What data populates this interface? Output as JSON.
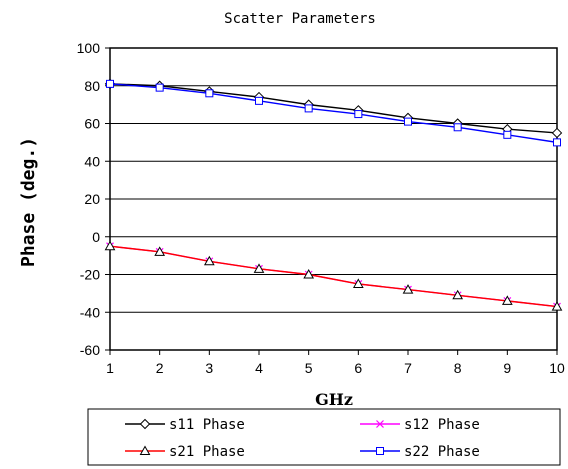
{
  "chart_data": {
    "type": "line",
    "title": "Scatter Parameters",
    "xlabel": "GHz",
    "ylabel": "Phase (deg.)",
    "x": [
      1,
      2,
      3,
      4,
      5,
      6,
      7,
      8,
      9,
      10
    ],
    "xlim": [
      1,
      10
    ],
    "ylim": [
      -60,
      100
    ],
    "yticks": [
      100,
      80,
      60,
      40,
      20,
      0,
      -20,
      -40,
      -60
    ],
    "grid": true,
    "legend_position": "bottom",
    "series": [
      {
        "name": "s11 Phase",
        "color": "#000000",
        "marker": "diamond",
        "values": [
          81,
          80,
          77,
          74,
          70,
          67,
          63,
          60,
          57,
          55
        ]
      },
      {
        "name": "s12 Phase",
        "color": "#ff00ff",
        "marker": "x",
        "values": [
          -5,
          -8,
          -13,
          -17,
          -20,
          -25,
          -28,
          -31,
          -34,
          -37
        ]
      },
      {
        "name": "s21 Phase",
        "color": "#ff0000",
        "marker": "triangle",
        "values": [
          -5,
          -8,
          -13,
          -17,
          -20,
          -25,
          -28,
          -31,
          -34,
          -37
        ]
      },
      {
        "name": "s22 Phase",
        "color": "#0000ff",
        "marker": "square",
        "values": [
          81,
          79,
          76,
          72,
          68,
          65,
          61,
          58,
          54,
          50
        ]
      }
    ]
  }
}
